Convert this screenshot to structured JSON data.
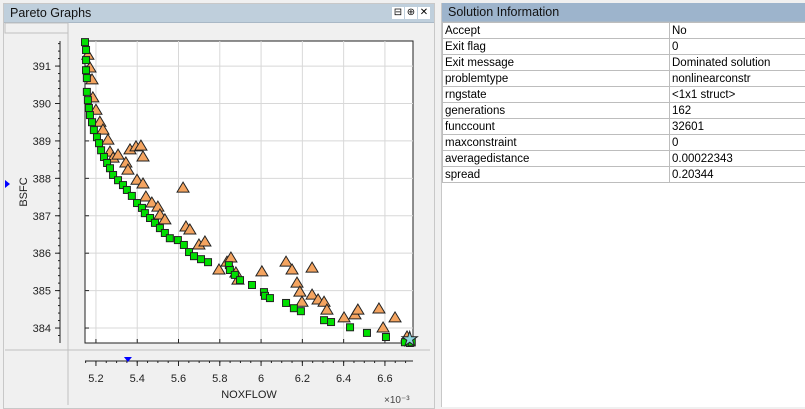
{
  "left_panel": {
    "title": "Pareto Graphs",
    "buttons": [
      {
        "icon": "undock-icon",
        "glyph": "⊟"
      },
      {
        "icon": "maximize-icon",
        "glyph": "⊕"
      },
      {
        "icon": "close-icon",
        "glyph": "✕"
      }
    ]
  },
  "right_panel": {
    "title": "Solution Information",
    "rows": [
      {
        "key": "Accept",
        "value": "No"
      },
      {
        "key": "Exit flag",
        "value": "0"
      },
      {
        "key": "Exit message",
        "value": "Dominated solution"
      },
      {
        "key": "problemtype",
        "value": "nonlinearconstr"
      },
      {
        "key": "rngstate",
        "value": "<1x1 struct>"
      },
      {
        "key": "generations",
        "value": "162"
      },
      {
        "key": "funccount",
        "value": "32601"
      },
      {
        "key": "maxconstraint",
        "value": "0"
      },
      {
        "key": "averagedistance",
        "value": "0.00022343"
      },
      {
        "key": "spread",
        "value": "0.20344"
      }
    ]
  },
  "chart_data": {
    "type": "scatter",
    "xlabel": "NOXFLOW",
    "ylabel": "BSFC",
    "x_multiplier": "×10⁻³",
    "xlim": [
      5.147,
      6.736
    ],
    "ylim": [
      383.6,
      391.67
    ],
    "xticks": [
      "5.2",
      "5.4",
      "5.6",
      "5.8",
      "6",
      "6.2",
      "6.4",
      "6.6"
    ],
    "yticks": [
      "384",
      "385",
      "386",
      "387",
      "388",
      "389",
      "390",
      "391"
    ],
    "grid": true,
    "colors": {
      "pareto": "#00e000",
      "dominated": "#f4a460",
      "selected_marker": "#0000ff"
    },
    "series": [
      {
        "marker": "square",
        "points": [
          [
            5.147,
            391.64
          ],
          [
            5.152,
            391.43
          ],
          [
            5.152,
            391.16
          ],
          [
            5.152,
            390.89
          ],
          [
            5.156,
            390.68
          ],
          [
            5.156,
            390.31
          ],
          [
            5.161,
            390.09
          ],
          [
            5.166,
            389.88
          ],
          [
            5.171,
            389.69
          ],
          [
            5.181,
            389.5
          ],
          [
            5.19,
            389.29
          ],
          [
            5.205,
            389.1
          ],
          [
            5.215,
            388.94
          ],
          [
            5.225,
            388.75
          ],
          [
            5.239,
            388.57
          ],
          [
            5.254,
            388.41
          ],
          [
            5.268,
            388.27
          ],
          [
            5.283,
            388.09
          ],
          [
            5.307,
            387.95
          ],
          [
            5.331,
            387.82
          ],
          [
            5.35,
            387.69
          ],
          [
            5.374,
            387.53
          ],
          [
            5.399,
            387.34
          ],
          [
            5.423,
            387.21
          ],
          [
            5.437,
            387.07
          ],
          [
            5.462,
            386.94
          ],
          [
            5.486,
            386.81
          ],
          [
            5.51,
            386.67
          ],
          [
            5.534,
            386.54
          ],
          [
            5.558,
            386.4
          ],
          [
            5.597,
            386.35
          ],
          [
            5.626,
            386.22
          ],
          [
            5.651,
            386.03
          ],
          [
            5.675,
            385.92
          ],
          [
            5.709,
            385.84
          ],
          [
            5.743,
            385.76
          ],
          [
            5.844,
            385.68
          ],
          [
            5.849,
            385.55
          ],
          [
            5.873,
            385.42
          ],
          [
            5.898,
            385.28
          ],
          [
            5.956,
            385.15
          ],
          [
            6.014,
            384.96
          ],
          [
            6.019,
            384.86
          ],
          [
            6.043,
            384.8
          ],
          [
            6.121,
            384.67
          ],
          [
            6.159,
            384.53
          ],
          [
            6.193,
            384.45
          ],
          [
            6.305,
            384.21
          ],
          [
            6.339,
            384.16
          ],
          [
            6.431,
            384.02
          ],
          [
            6.513,
            383.87
          ],
          [
            6.605,
            383.76
          ],
          [
            6.697,
            383.62
          ],
          [
            6.721,
            383.6
          ],
          [
            6.73,
            383.62
          ]
        ]
      },
      {
        "marker": "triangle",
        "points": [
          [
            5.161,
            391.29
          ],
          [
            5.171,
            390.95
          ],
          [
            5.181,
            390.63
          ],
          [
            5.185,
            390.15
          ],
          [
            5.2,
            389.82
          ],
          [
            5.219,
            389.5
          ],
          [
            5.234,
            389.29
          ],
          [
            5.258,
            389.02
          ],
          [
            5.268,
            388.7
          ],
          [
            5.283,
            388.54
          ],
          [
            5.307,
            388.62
          ],
          [
            5.345,
            388.41
          ],
          [
            5.365,
            388.76
          ],
          [
            5.394,
            388.84
          ],
          [
            5.418,
            388.86
          ],
          [
            5.428,
            388.57
          ],
          [
            5.355,
            388.22
          ],
          [
            5.399,
            387.95
          ],
          [
            5.428,
            387.85
          ],
          [
            5.442,
            387.5
          ],
          [
            5.471,
            387.34
          ],
          [
            5.5,
            387.23
          ],
          [
            5.51,
            387.02
          ],
          [
            5.534,
            386.89
          ],
          [
            5.622,
            387.74
          ],
          [
            5.636,
            386.7
          ],
          [
            5.655,
            386.62
          ],
          [
            5.699,
            386.22
          ],
          [
            5.728,
            386.3
          ],
          [
            5.796,
            385.55
          ],
          [
            5.835,
            385.76
          ],
          [
            5.854,
            385.87
          ],
          [
            5.878,
            385.47
          ],
          [
            5.888,
            385.28
          ],
          [
            6.004,
            385.5
          ],
          [
            6.121,
            385.76
          ],
          [
            6.15,
            385.55
          ],
          [
            6.174,
            385.2
          ],
          [
            6.188,
            384.96
          ],
          [
            6.198,
            384.69
          ],
          [
            6.247,
            385.6
          ],
          [
            6.247,
            384.88
          ],
          [
            6.276,
            384.75
          ],
          [
            6.305,
            384.69
          ],
          [
            6.319,
            384.48
          ],
          [
            6.402,
            384.27
          ],
          [
            6.455,
            384.35
          ],
          [
            6.469,
            384.48
          ],
          [
            6.571,
            384.51
          ],
          [
            6.591,
            384.0
          ],
          [
            6.649,
            384.27
          ],
          [
            6.707,
            383.76
          ]
        ]
      },
      {
        "marker": "star",
        "points": [
          [
            6.72,
            383.7
          ]
        ]
      }
    ],
    "selected": {
      "x": 5.355,
      "y": 387.85
    }
  }
}
